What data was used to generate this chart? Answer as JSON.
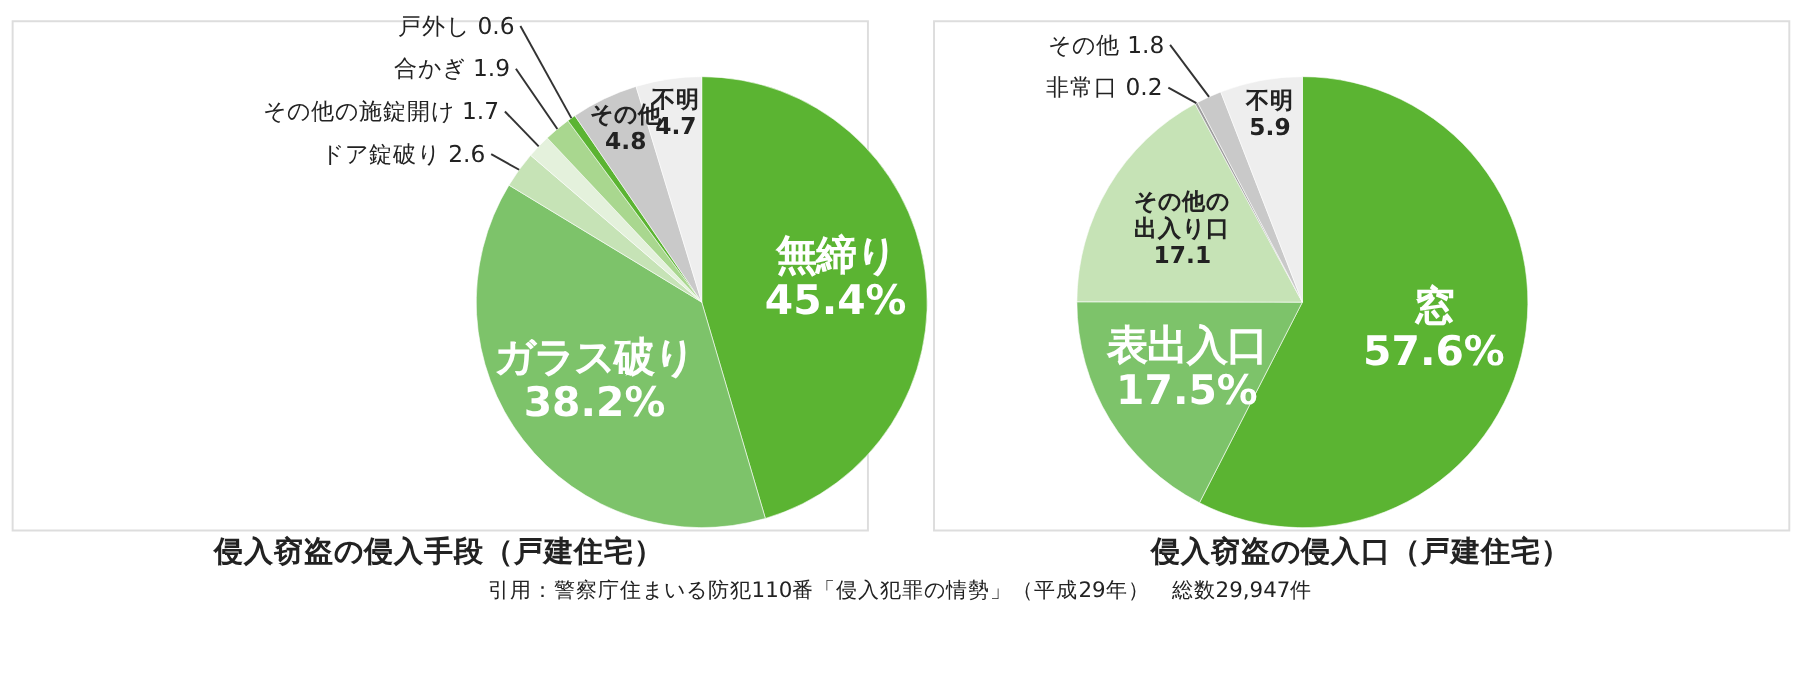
{
  "chart_data": [
    {
      "type": "pie",
      "title": "侵入窃盗の侵入手段（戸建住宅）",
      "categories": [
        "無締り",
        "ガラス破り",
        "ドア錠破り",
        "その他の施錠開け",
        "合かぎ",
        "戸外し",
        "その他",
        "不明"
      ],
      "values": [
        45.4,
        38.2,
        2.6,
        1.7,
        1.9,
        0.6,
        4.8,
        4.7
      ],
      "colors": [
        "#5bb432",
        "#7dc36a",
        "#c6e3b6",
        "#e4f1dc",
        "#a9d78f",
        "#5bb432",
        "#c9c9c9",
        "#eeeeee"
      ],
      "value_labels": [
        "45.4%",
        "38.2%",
        "2.6",
        "1.7",
        "1.9",
        "0.6",
        "4.8",
        "4.7"
      ],
      "annotations": [
        "引用：警察庁住まいる防犯110番「侵入犯罪の情勢」（平成29年）　総数29,947件"
      ]
    },
    {
      "type": "pie",
      "title": "侵入窃盗の侵入口（戸建住宅）",
      "categories": [
        "窓",
        "表出入口",
        "その他の出入り口",
        "非常口",
        "その他",
        "不明"
      ],
      "values": [
        57.6,
        17.5,
        17.1,
        0.2,
        1.8,
        5.9
      ],
      "colors": [
        "#5bb432",
        "#7dc36a",
        "#c6e3b6",
        "#9c9c9c",
        "#c9c9c9",
        "#eeeeee"
      ],
      "value_labels": [
        "57.6%",
        "17.5%",
        "17.1",
        "0.2",
        "1.8",
        "5.9"
      ]
    }
  ]
}
